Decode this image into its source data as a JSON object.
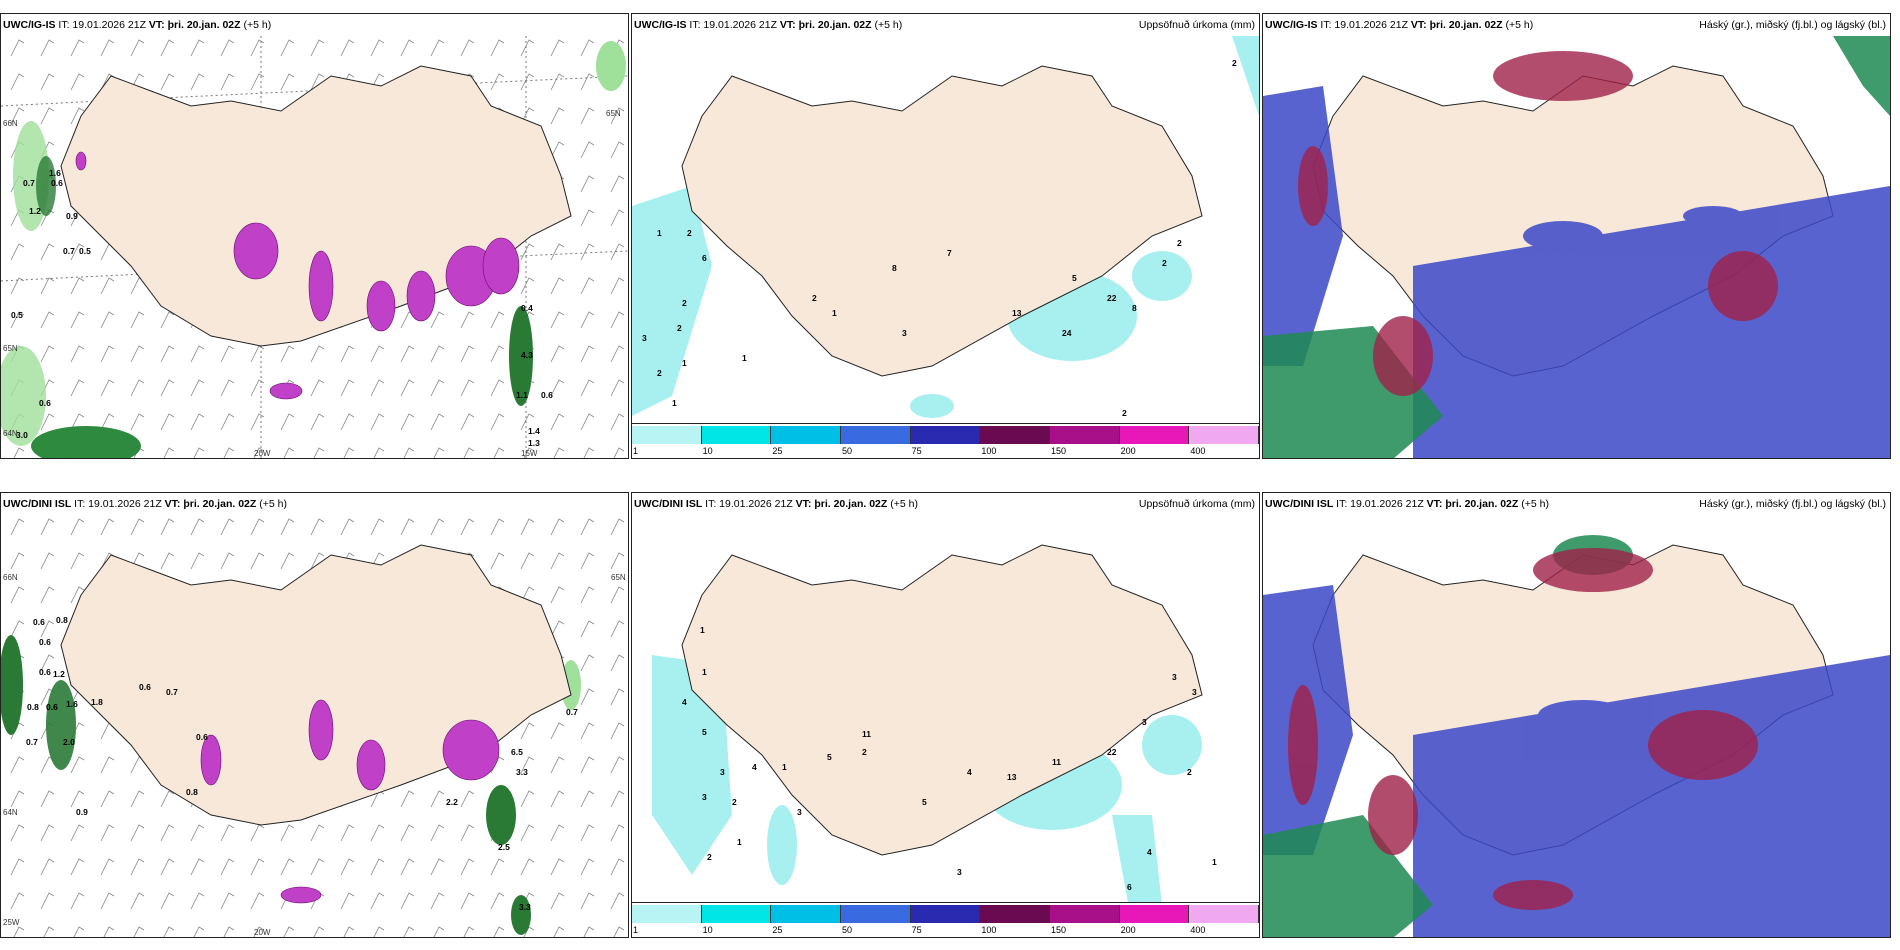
{
  "panels": [
    {
      "id": "p1",
      "model": "UWC/IG-IS",
      "it_label": "IT: 19.01.2026 21Z",
      "vt_label": "VT: þri. 20.jan. 02Z",
      "offset": "(+5 h)",
      "right_title": "",
      "kind": "wind",
      "axis_labels": [
        "20W",
        "15W",
        "66N",
        "65N",
        "64N",
        "65N"
      ],
      "values": [
        "0.7",
        "1.6",
        "0.6",
        "1.2",
        "0.9",
        "0.7",
        "0.5",
        "0.5",
        "0.6",
        "3.0",
        "0.4",
        "4.3",
        "1.1",
        "0.6",
        "1.4",
        "1.3"
      ]
    },
    {
      "id": "p2",
      "model": "UWC/IG-IS",
      "it_label": "IT: 19.01.2026 21Z",
      "vt_label": "VT: þri. 20.jan. 02Z",
      "offset": "(+5 h)",
      "right_title": "Uppsöfnuð úrkoma (mm)",
      "kind": "precip",
      "values": [
        "2",
        "1",
        "2",
        "6",
        "2",
        "2",
        "3",
        "1",
        "2",
        "1",
        "1",
        "7",
        "8",
        "2",
        "1",
        "3",
        "13",
        "24",
        "22",
        "8",
        "2",
        "2",
        "5",
        "1",
        "2"
      ]
    },
    {
      "id": "p3",
      "model": "UWC/IG-IS",
      "it_label": "IT: 19.01.2026 21Z",
      "vt_label": "VT: þri. 20.jan. 02Z",
      "offset": "(+5 h)",
      "right_title": "Háský (gr.), miðský (fj.bl.) og lágský (bl.)",
      "kind": "cloud"
    },
    {
      "id": "p4",
      "model": "UWC/DINI ISL",
      "it_label": "IT: 19.01.2026 21Z",
      "vt_label": "VT: þri. 20.jan. 02Z",
      "offset": "(+5 h)",
      "right_title": "",
      "kind": "wind",
      "axis_labels": [
        "20W",
        "66N",
        "65N",
        "64N",
        "25W"
      ],
      "values": [
        "0.6",
        "0.8",
        "0.6",
        "0.6",
        "1.2",
        "0.8",
        "0.6",
        "1.6",
        "1.8",
        "0.6",
        "0.7",
        "0.6",
        "0.9",
        "0.7",
        "2.0",
        "0.8",
        "6.5",
        "3.3",
        "2.5",
        "2.2",
        "0.7",
        "3.3"
      ]
    },
    {
      "id": "p5",
      "model": "UWC/DINI ISL",
      "it_label": "IT: 19.01.2026 21Z",
      "vt_label": "VT: þri. 20.jan. 02Z",
      "offset": "(+5 h)",
      "right_title": "Uppsöfnuð úrkoma (mm)",
      "kind": "precip",
      "values": [
        "1",
        "1",
        "4",
        "5",
        "3",
        "3",
        "2",
        "1",
        "3",
        "2",
        "4",
        "1",
        "5",
        "2",
        "11",
        "4",
        "13",
        "5",
        "11",
        "22",
        "3",
        "2",
        "3",
        "3",
        "4",
        "1",
        "3",
        "6"
      ]
    },
    {
      "id": "p6",
      "model": "UWC/DINI ISL",
      "it_label": "IT: 19.01.2026 21Z",
      "vt_label": "VT: þri. 20.jan. 02Z",
      "offset": "(+5 h)",
      "right_title": "Háský (gr.), miðský (fj.bl.) og lágský (bl.)",
      "kind": "cloud"
    }
  ],
  "colorbar": {
    "labels": [
      "1",
      "10",
      "25",
      "50",
      "75",
      "100",
      "150",
      "200",
      "400"
    ],
    "colors": [
      "#b8f4f4",
      "#00e6e6",
      "#00bfe6",
      "#3a6ae0",
      "#2a2ab0",
      "#6a0a50",
      "#a8108a",
      "#e818b8",
      "#f0a8f0"
    ]
  },
  "colors": {
    "land": "#f7e8da",
    "coast": "#222222",
    "purple": "#c040c8",
    "green": "#3aa04a",
    "precip": "#a8f0f0",
    "high": "#1e8a52",
    "mid": "#a02048",
    "low": "#3c48c8"
  }
}
